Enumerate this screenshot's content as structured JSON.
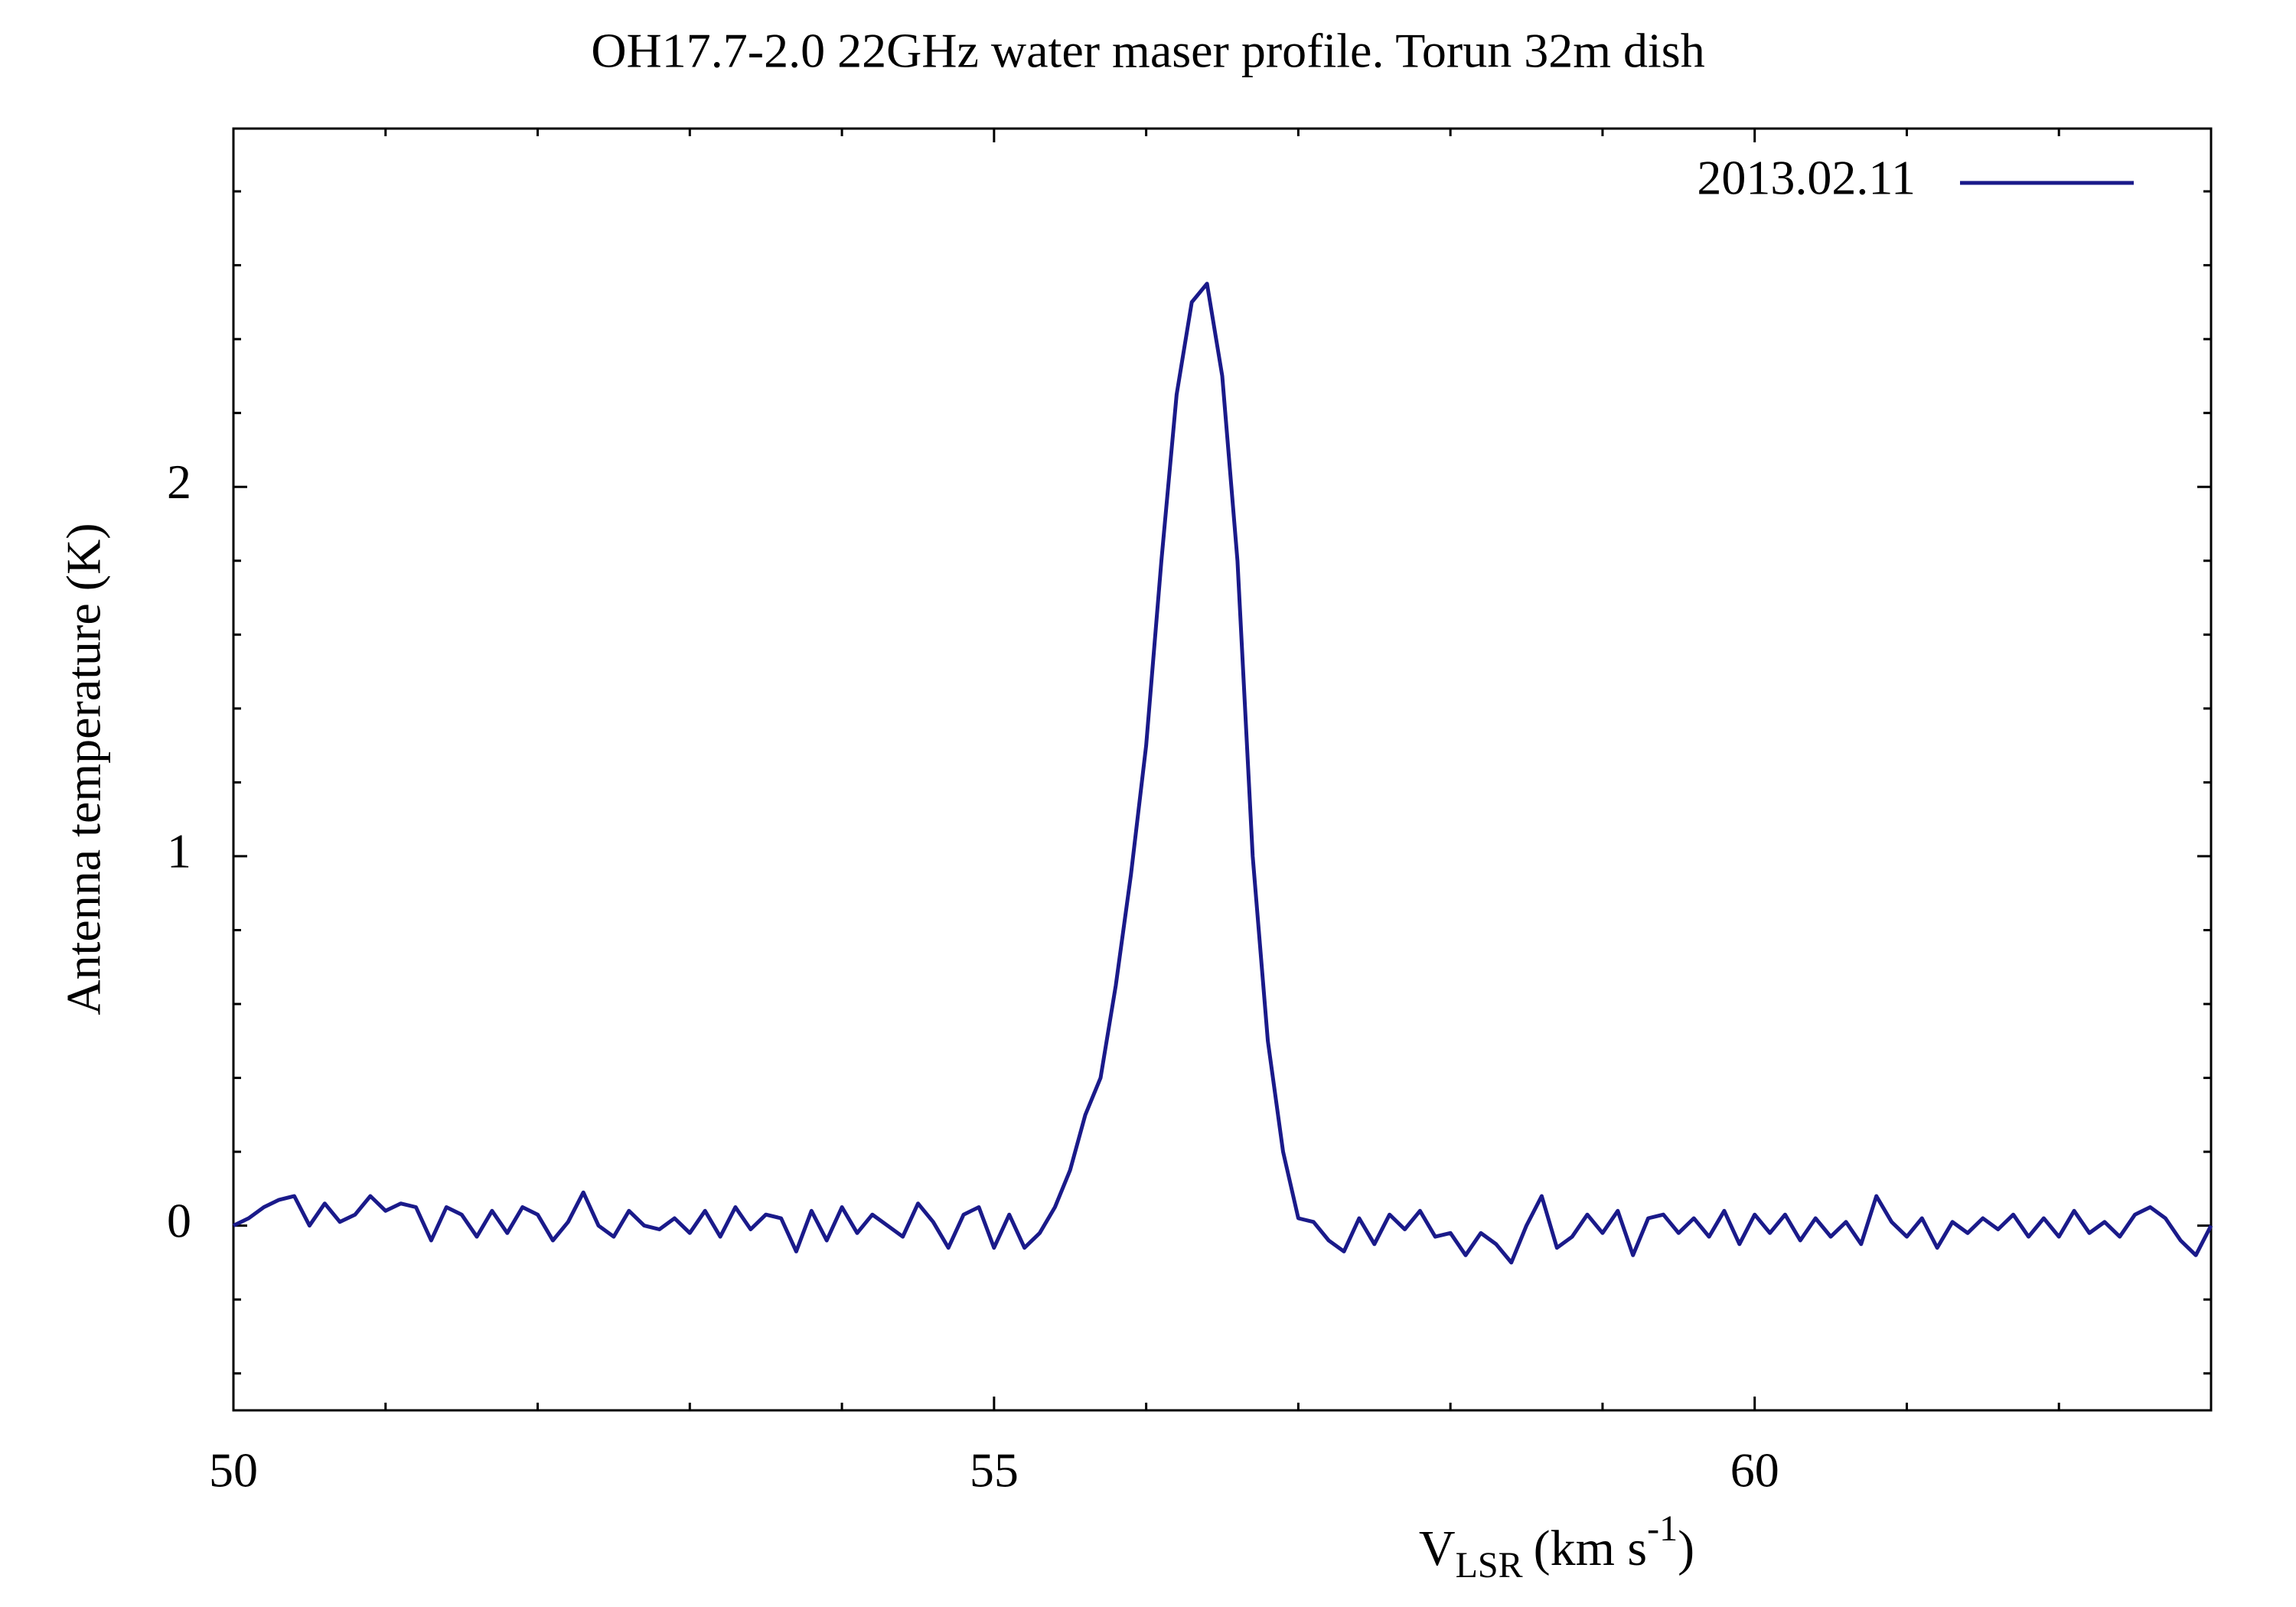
{
  "chart_data": {
    "type": "line",
    "title": "OH17.7-2.0 22GHz water maser profile. Torun 32m dish",
    "xlabel": {
      "main": "V",
      "sub": "LSR",
      "unit": "(km s",
      "sup": "-1",
      "close": ")"
    },
    "ylabel": "Antenna temperature (K)",
    "x": [
      50.0,
      50.1,
      50.2,
      50.3,
      50.4,
      50.5,
      50.6,
      50.7,
      50.8,
      50.9,
      51.0,
      51.1,
      51.2,
      51.3,
      51.4,
      51.5,
      51.6,
      51.7,
      51.8,
      51.9,
      52.0,
      52.1,
      52.2,
      52.3,
      52.4,
      52.5,
      52.6,
      52.7,
      52.8,
      52.9,
      53.0,
      53.1,
      53.2,
      53.3,
      53.4,
      53.5,
      53.6,
      53.7,
      53.8,
      53.9,
      54.0,
      54.1,
      54.2,
      54.3,
      54.4,
      54.5,
      54.6,
      54.7,
      54.8,
      54.9,
      55.0,
      55.1,
      55.2,
      55.3,
      55.4,
      55.5,
      55.6,
      55.7,
      55.8,
      55.9,
      56.0,
      56.1,
      56.2,
      56.3,
      56.4,
      56.5,
      56.6,
      56.7,
      56.8,
      56.9,
      57.0,
      57.1,
      57.2,
      57.3,
      57.4,
      57.5,
      57.6,
      57.7,
      57.8,
      57.9,
      58.0,
      58.1,
      58.2,
      58.3,
      58.4,
      58.5,
      58.6,
      58.7,
      58.8,
      58.9,
      59.0,
      59.1,
      59.2,
      59.3,
      59.4,
      59.5,
      59.6,
      59.7,
      59.8,
      59.9,
      60.0,
      60.1,
      60.2,
      60.3,
      60.4,
      60.5,
      60.6,
      60.7,
      60.8,
      60.9,
      61.0,
      61.1,
      61.2,
      61.3,
      61.4,
      61.5,
      61.6,
      61.7,
      61.8,
      61.9,
      62.0,
      62.1,
      62.2,
      62.3,
      62.4,
      62.5,
      62.6,
      62.7,
      62.8,
      62.9,
      63.0
    ],
    "series": [
      {
        "name": "2013.02.11",
        "color": "#1a1a8a",
        "values": [
          0.0,
          0.02,
          0.05,
          0.07,
          0.08,
          0.0,
          0.06,
          0.01,
          0.03,
          0.08,
          0.04,
          0.06,
          0.05,
          -0.04,
          0.05,
          0.03,
          -0.03,
          0.04,
          -0.02,
          0.05,
          0.03,
          -0.04,
          0.01,
          0.09,
          0.0,
          -0.03,
          0.04,
          0.0,
          -0.01,
          0.02,
          -0.02,
          0.04,
          -0.03,
          0.05,
          -0.01,
          0.03,
          0.02,
          -0.07,
          0.04,
          -0.04,
          0.05,
          -0.02,
          0.03,
          0.0,
          -0.03,
          0.06,
          0.01,
          -0.06,
          0.03,
          0.05,
          -0.06,
          0.03,
          -0.06,
          -0.02,
          0.05,
          0.15,
          0.3,
          0.4,
          0.65,
          0.95,
          1.3,
          1.8,
          2.25,
          2.5,
          2.55,
          2.3,
          1.8,
          1.0,
          0.5,
          0.2,
          0.02,
          0.01,
          -0.04,
          -0.07,
          0.02,
          -0.05,
          0.03,
          -0.01,
          0.04,
          -0.03,
          -0.02,
          -0.08,
          -0.02,
          -0.05,
          -0.1,
          0.0,
          0.08,
          -0.06,
          -0.03,
          0.03,
          -0.02,
          0.04,
          -0.08,
          0.02,
          0.03,
          -0.02,
          0.02,
          -0.03,
          0.04,
          -0.05,
          0.03,
          -0.02,
          0.03,
          -0.04,
          0.02,
          -0.03,
          0.01,
          -0.05,
          0.08,
          0.01,
          -0.03,
          0.02,
          -0.06,
          0.01,
          -0.02,
          0.02,
          -0.01,
          0.03,
          -0.03,
          0.02,
          -0.03,
          0.04,
          -0.02,
          0.01,
          -0.03,
          0.03,
          0.05,
          0.02,
          -0.04,
          -0.08,
          0.0
        ]
      }
    ],
    "xlim": [
      50,
      63
    ],
    "ylim": [
      -0.5,
      2.97
    ],
    "xticks": [
      50,
      55,
      60
    ],
    "yticks": [
      0,
      1,
      2
    ],
    "x_minor_ticks": [
      51,
      52,
      53,
      54,
      56,
      57,
      58,
      59,
      61,
      62
    ],
    "y_minor_ticks": [
      -0.4,
      -0.2,
      0.2,
      0.4,
      0.6,
      0.8,
      1.2,
      1.4,
      1.6,
      1.8,
      2.2,
      2.4,
      2.6,
      2.8
    ],
    "legend": "top-right",
    "grid": false
  }
}
